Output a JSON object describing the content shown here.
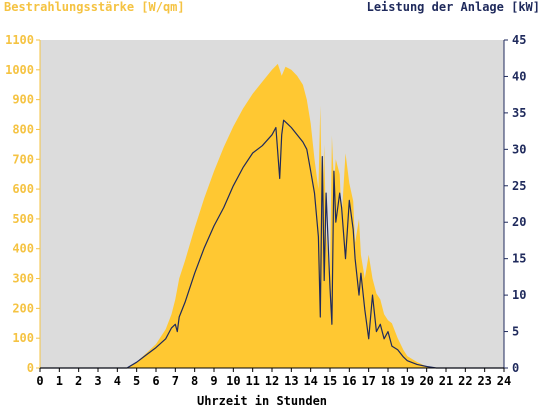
{
  "chart_data": {
    "type": "area",
    "title_left": "Bestrahlungsstärke [W/qm]",
    "title_right": "Leistung der Anlage [kW]",
    "xlabel": "Uhrzeit in Stunden",
    "xlim": [
      0,
      24
    ],
    "ylim_left": [
      0,
      1100
    ],
    "ylim_right": [
      0,
      45
    ],
    "x_ticks": [
      "0",
      "1",
      "2",
      "3",
      "4",
      "5",
      "6",
      "7",
      "8",
      "9",
      "10",
      "11",
      "12",
      "13",
      "14",
      "15",
      "16",
      "17",
      "18",
      "19",
      "20",
      "21",
      "22",
      "23",
      "24"
    ],
    "y_left_ticks": [
      "0",
      "100",
      "200",
      "300",
      "400",
      "500",
      "600",
      "700",
      "800",
      "900",
      "1000",
      "1100"
    ],
    "y_right_ticks": [
      "0",
      "5",
      "10",
      "15",
      "20",
      "25",
      "30",
      "35",
      "40",
      "45"
    ],
    "grid": false,
    "colors": {
      "plot_bg": "#dcdcdc",
      "irradiance": "#ffc832",
      "power": "#1f2a5c",
      "left_axis": "#f5c342",
      "right_axis": "#1f2a5c"
    },
    "series": [
      {
        "name": "Bestrahlungsstärke [W/qm]",
        "axis": "left",
        "type": "area",
        "x": [
          0,
          4.5,
          5,
          5.5,
          6,
          6.5,
          6.8,
          7,
          7.2,
          7.5,
          8,
          8.5,
          9,
          9.5,
          10,
          10.5,
          11,
          11.5,
          12,
          12.3,
          12.5,
          12.7,
          13,
          13.3,
          13.6,
          13.8,
          14,
          14.2,
          14.4,
          14.5,
          14.6,
          14.7,
          14.8,
          15,
          15.1,
          15.2,
          15.3,
          15.5,
          15.6,
          15.8,
          16,
          16.2,
          16.3,
          16.5,
          16.6,
          16.8,
          17,
          17.2,
          17.4,
          17.6,
          17.8,
          18,
          18.2,
          18.5,
          18.8,
          19,
          19.5,
          20,
          20.5,
          21,
          24
        ],
        "y": [
          0,
          0,
          20,
          50,
          80,
          130,
          180,
          230,
          300,
          360,
          470,
          570,
          660,
          740,
          810,
          870,
          920,
          960,
          1000,
          1020,
          980,
          1010,
          1000,
          980,
          950,
          900,
          820,
          700,
          600,
          880,
          500,
          750,
          450,
          300,
          780,
          620,
          700,
          650,
          500,
          720,
          620,
          560,
          420,
          500,
          380,
          300,
          380,
          300,
          250,
          230,
          180,
          160,
          150,
          100,
          60,
          40,
          20,
          5,
          0,
          0,
          0
        ]
      },
      {
        "name": "Leistung der Anlage [kW]",
        "axis": "right",
        "type": "line",
        "x": [
          0,
          4.5,
          5,
          5.5,
          6,
          6.5,
          6.8,
          7,
          7.1,
          7.2,
          7.5,
          8,
          8.5,
          9,
          9.5,
          10,
          10.5,
          11,
          11.5,
          12,
          12.2,
          12.4,
          12.5,
          12.6,
          12.8,
          13,
          13.3,
          13.6,
          13.8,
          14,
          14.2,
          14.4,
          14.5,
          14.6,
          14.7,
          14.8,
          15,
          15.1,
          15.2,
          15.3,
          15.5,
          15.6,
          15.8,
          16,
          16.2,
          16.3,
          16.5,
          16.6,
          16.8,
          17,
          17.2,
          17.4,
          17.6,
          17.8,
          18,
          18.2,
          18.5,
          18.8,
          19,
          19.5,
          20,
          20.5,
          21,
          24
        ],
        "y": [
          0,
          0,
          0.8,
          1.8,
          2.8,
          4,
          5.5,
          6,
          5,
          7,
          9,
          13,
          16.5,
          19.5,
          22,
          25,
          27.5,
          29.5,
          30.5,
          32,
          33,
          26,
          32,
          34,
          33.5,
          33,
          32,
          31,
          30,
          27,
          24,
          18,
          7,
          29,
          12,
          24,
          11,
          6,
          27,
          20,
          24,
          22,
          15,
          23,
          19,
          15,
          10,
          13,
          8,
          4,
          10,
          5,
          6,
          4,
          5,
          3,
          2.5,
          1.5,
          1,
          0.5,
          0.2,
          0,
          0,
          0
        ]
      }
    ]
  }
}
